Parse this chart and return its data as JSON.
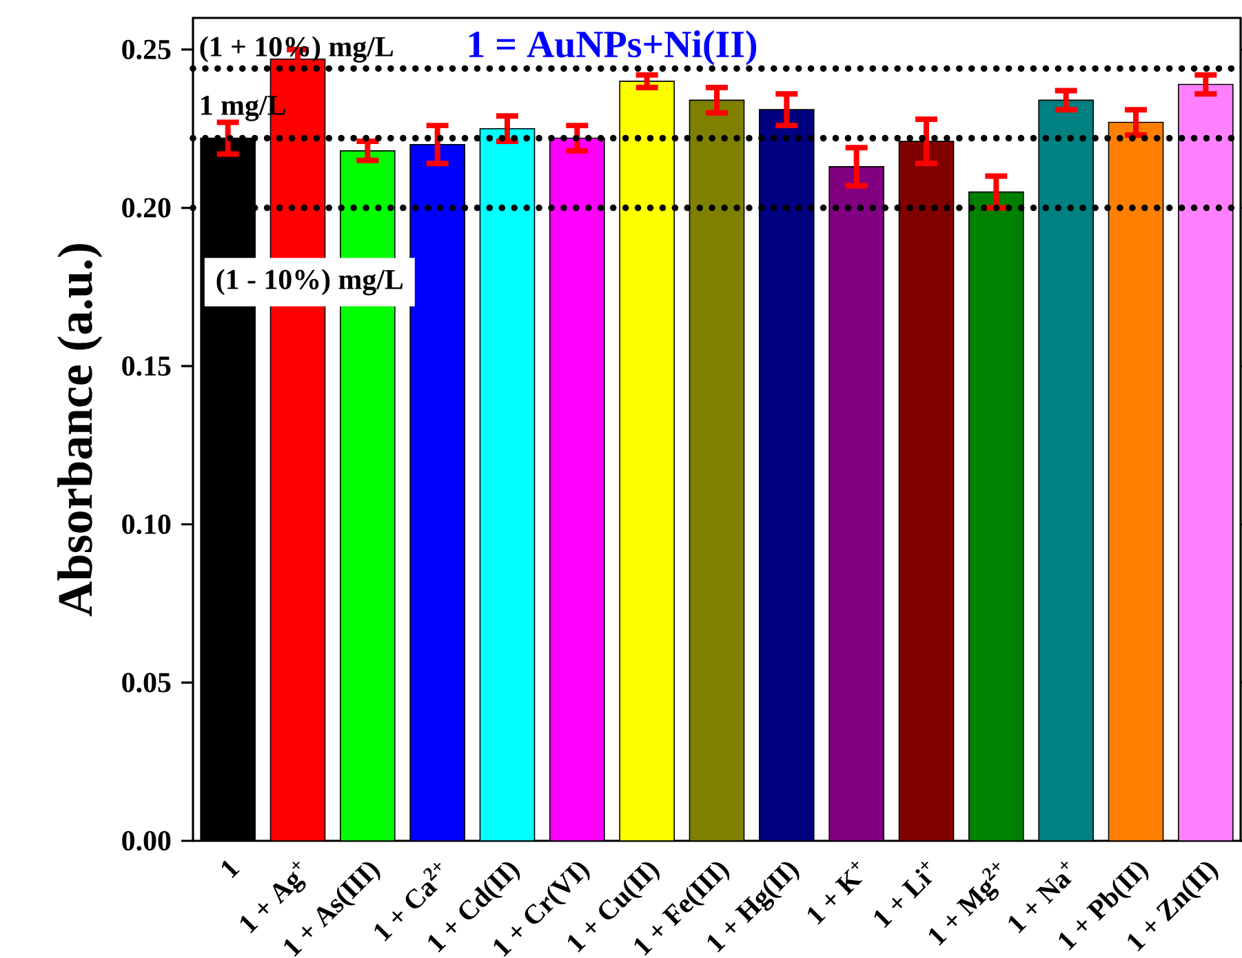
{
  "chart_data": {
    "type": "bar",
    "title": "1 = AuNPs+Ni(II)",
    "ylabel": "Absorbance (a.u.)",
    "categories": [
      "1",
      "1 + Ag$^{+}$",
      "1 + As(III)",
      "1 + Ca$^{2+}$",
      "1 + Cd(II)",
      "1 + Cr(VI)",
      "1 + Cu(II)",
      "1 + Fe(III)",
      "1 + Hg(II)",
      "1 + K$^{+}$",
      "1 + Li$^{+}$",
      "1 + Mg$^{2+}$",
      "1 + Na$^{+}$",
      "1 + Pb(II)",
      "1 + Zn(II)"
    ],
    "values": [
      0.222,
      0.247,
      0.218,
      0.22,
      0.225,
      0.222,
      0.24,
      0.234,
      0.231,
      0.213,
      0.221,
      0.205,
      0.234,
      0.227,
      0.239
    ],
    "errors": [
      0.005,
      0.003,
      0.003,
      0.006,
      0.004,
      0.004,
      0.002,
      0.004,
      0.005,
      0.006,
      0.007,
      0.005,
      0.003,
      0.004,
      0.003
    ],
    "colors": [
      "#000000",
      "#ff0000",
      "#00ff00",
      "#0000ff",
      "#00ffff",
      "#ff00ff",
      "#ffff00",
      "#808000",
      "#000080",
      "#800080",
      "#800000",
      "#008000",
      "#008080",
      "#ff8000",
      "#ff80ff"
    ],
    "ylim": [
      0,
      0.26
    ],
    "yticks": [
      {
        "value": 0,
        "label": "0.00"
      },
      {
        "value": 0.05,
        "label": "0.05"
      },
      {
        "value": 0.1,
        "label": "0.10"
      },
      {
        "value": 0.15,
        "label": "0.15"
      },
      {
        "value": 0.2,
        "label": "0.20"
      },
      {
        "value": 0.25,
        "label": "0.25"
      }
    ],
    "ref_lines": [
      {
        "axis": "y",
        "value": 0.244,
        "label": "(1 + 10%) mg/L",
        "color": "#000000",
        "line_style": "dotted"
      },
      {
        "axis": "y",
        "value": 0.222,
        "label": "1 mg/L",
        "color": "#000000",
        "line_style": "dotted"
      },
      {
        "axis": "y",
        "value": 0.2,
        "label": "(1 - 10%) mg/L",
        "color": "#000000",
        "line_style": "dotted"
      }
    ],
    "grid": false
  }
}
